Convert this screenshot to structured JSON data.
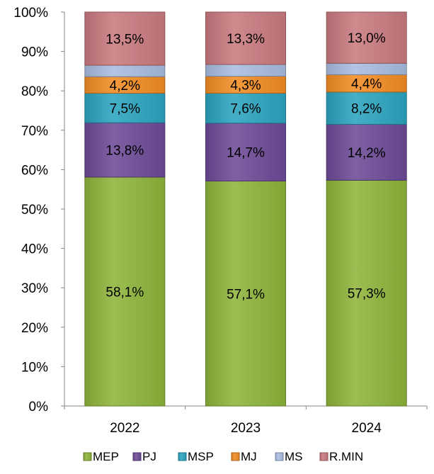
{
  "chart_data": {
    "type": "bar",
    "stacked": true,
    "percent_stacked": true,
    "categories": [
      "2022",
      "2023",
      "2024"
    ],
    "ylim": [
      0,
      100
    ],
    "y_ticks": [
      "0%",
      "10%",
      "20%",
      "30%",
      "40%",
      "50%",
      "60%",
      "70%",
      "80%",
      "90%",
      "100%"
    ],
    "grid": false,
    "legend_position": "bottom",
    "series": [
      {
        "name": "MEP",
        "color": "#8DB43A",
        "values": [
          58.1,
          57.1,
          57.3
        ],
        "labels": [
          "58,1%",
          "57,1%",
          "57,3%"
        ]
      },
      {
        "name": "PJ",
        "color": "#6D4A97",
        "values": [
          13.8,
          14.7,
          14.2
        ],
        "labels": [
          "13,8%",
          "14,7%",
          "14,2%"
        ]
      },
      {
        "name": "MSP",
        "color": "#2BA4BF",
        "values": [
          7.5,
          7.6,
          8.2
        ],
        "labels": [
          "7,5%",
          "7,6%",
          "8,2%"
        ]
      },
      {
        "name": "MJ",
        "color": "#F28C24",
        "values": [
          4.2,
          4.3,
          4.4
        ],
        "labels": [
          "4,2%",
          "4,3%",
          "4,4%"
        ]
      },
      {
        "name": "MS",
        "color": "#A9BCE0",
        "values": [
          2.9,
          3.0,
          2.9
        ],
        "labels": [
          "",
          "",
          ""
        ]
      },
      {
        "name": "R.MIN",
        "color": "#C97A7F",
        "values": [
          13.5,
          13.3,
          13.0
        ],
        "labels": [
          "13,5%",
          "13,3%",
          "13,0%"
        ]
      }
    ]
  }
}
